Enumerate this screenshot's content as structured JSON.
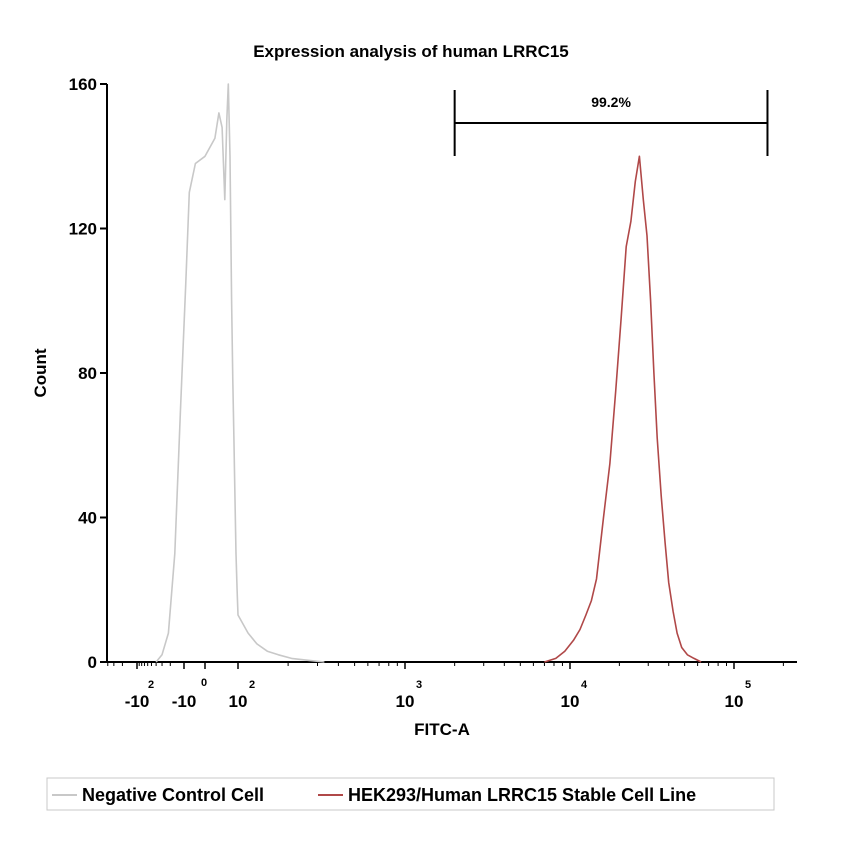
{
  "chart_data": {
    "type": "line",
    "title": "Expression analysis of human LRRC15",
    "xlabel": "FITC-A",
    "ylabel": "Count",
    "ylim": [
      0,
      160
    ],
    "y_ticks": [
      0,
      40,
      80,
      120,
      160
    ],
    "x_scale": "biexponential",
    "x_ticks": [
      {
        "base": "-10",
        "exp": "2",
        "value": -100
      },
      {
        "base": "-10",
        "exp": "",
        "value": -10
      },
      {
        "base": "",
        "exp": "0",
        "value": 0
      },
      {
        "base": "10",
        "exp": "2",
        "value": 100
      },
      {
        "base": "10",
        "exp": "3",
        "value": 1000
      },
      {
        "base": "10",
        "exp": "4",
        "value": 10000
      },
      {
        "base": "10",
        "exp": "5",
        "value": 100000
      }
    ],
    "gate": {
      "label": "99.2%",
      "x_start": 2000,
      "x_end": 160000
    },
    "series": [
      {
        "name": "Negative Control Cell",
        "color": "#c8c8c8",
        "x": [
          -40,
          -30,
          -22,
          -16,
          -12,
          -8,
          -5,
          -2,
          0,
          3,
          6,
          10,
          15,
          20,
          25,
          32,
          40,
          48,
          56,
          65,
          75,
          88,
          100,
          115,
          130,
          150,
          175,
          210,
          260,
          330
        ],
        "y": [
          0,
          2,
          8,
          30,
          70,
          105,
          130,
          138,
          140,
          145,
          152,
          148,
          128,
          150,
          160,
          140,
          100,
          78,
          62,
          45,
          30,
          20,
          13,
          8,
          5,
          3,
          2,
          1,
          0.5,
          0
        ]
      },
      {
        "name": "HEK293/Human LRRC15 Stable Cell Line",
        "color": "#b04848",
        "x": [
          7000,
          8200,
          9300,
          10500,
          11500,
          12500,
          13500,
          14500,
          16000,
          17500,
          19000,
          20500,
          22000,
          23500,
          25000,
          26500,
          28000,
          29500,
          31000,
          32500,
          34000,
          36000,
          38000,
          40000,
          42500,
          45000,
          48000,
          52000,
          57000,
          63000
        ],
        "y": [
          0,
          1,
          3,
          6,
          9,
          13,
          17,
          23,
          40,
          55,
          75,
          95,
          115,
          122,
          133,
          140,
          128,
          118,
          100,
          80,
          62,
          46,
          33,
          22,
          14,
          8,
          4,
          2,
          1,
          0
        ]
      }
    ],
    "legend": {
      "position": "bottom",
      "entries": [
        "Negative Control Cell",
        "HEK293/Human LRRC15 Stable Cell Line"
      ]
    }
  }
}
